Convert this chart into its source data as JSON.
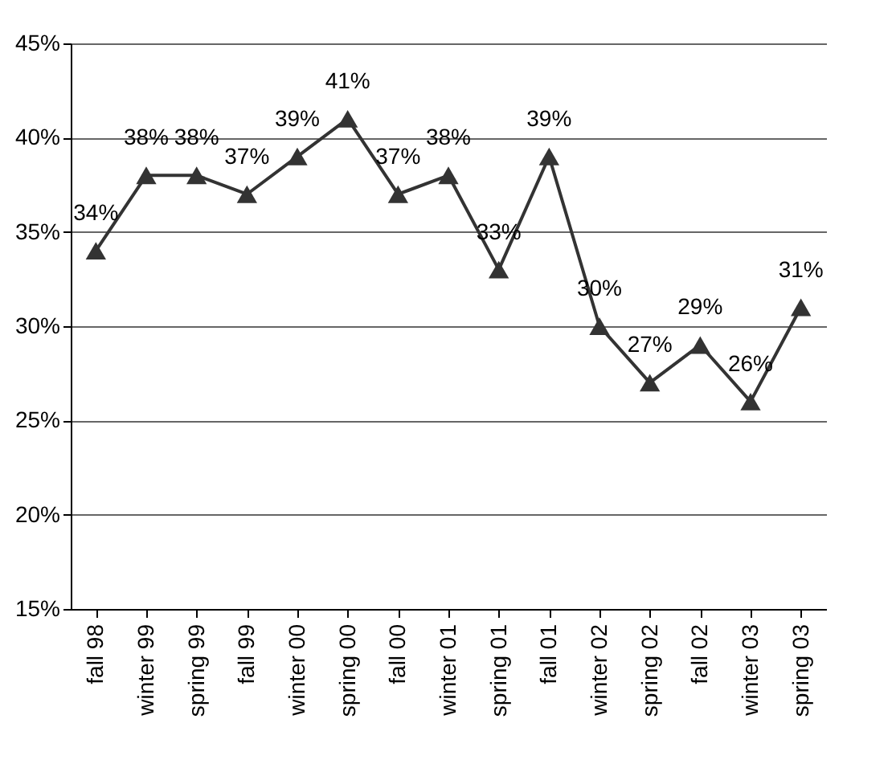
{
  "chart_data": {
    "type": "line",
    "categories": [
      "fall 98",
      "winter 99",
      "spring 99",
      "fall 99",
      "winter 00",
      "spring 00",
      "fall 00",
      "winter 01",
      "spring 01",
      "fall 01",
      "winter 02",
      "spring 02",
      "fall 02",
      "winter 03",
      "spring 03"
    ],
    "series": [
      {
        "color": "#333333",
        "values": [
          34,
          38,
          38,
          37,
          39,
          41,
          37,
          38,
          33,
          39,
          30,
          27,
          29,
          26,
          31
        ],
        "value_labels": [
          "34%",
          "38%",
          "38%",
          "37%",
          "39%",
          "41%",
          "37%",
          "38%",
          "33%",
          "39%",
          "30%",
          "27%",
          "29%",
          "26%",
          "31%"
        ]
      }
    ],
    "ylim": [
      15,
      45
    ],
    "yticks": [
      {
        "value": 15,
        "label": "15%"
      },
      {
        "value": 20,
        "label": "20%"
      },
      {
        "value": 25,
        "label": "25%"
      },
      {
        "value": 30,
        "label": "30%"
      },
      {
        "value": 35,
        "label": "35%"
      },
      {
        "value": 40,
        "label": "40%"
      },
      {
        "value": 45,
        "label": "45%"
      }
    ],
    "grid": "y",
    "marker": "triangle",
    "line_style": "solid"
  }
}
